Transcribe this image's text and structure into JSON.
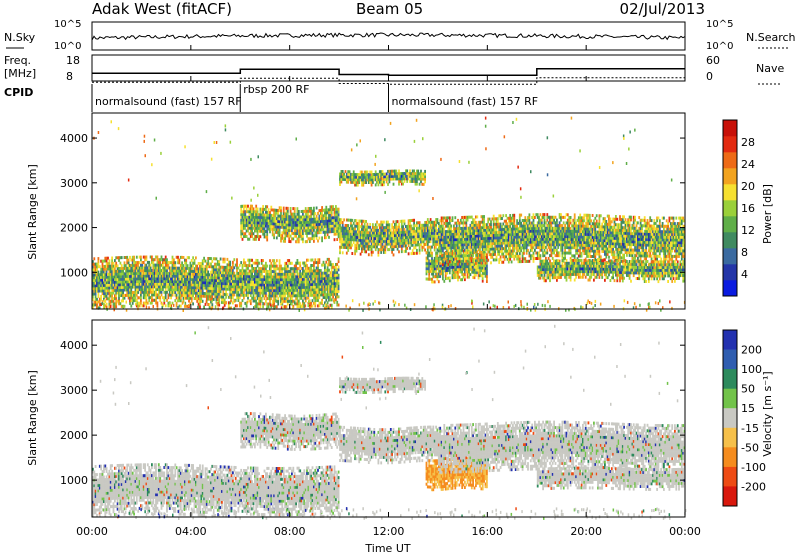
{
  "header": {
    "station": "Adak West (fitACF)",
    "beam": "Beam 05",
    "date": "02/Jul/2013"
  },
  "strip_labels": {
    "nsky": "N.Sky",
    "nsky_ticks": [
      "10^5",
      "10^0"
    ],
    "nsearch": "N.Search",
    "freq_line1": "Freq.",
    "freq_line2": "[MHz]",
    "freq_ticks": [
      "18",
      "8"
    ],
    "nave_ticks": [
      "60",
      "0"
    ],
    "nave": "Nave",
    "cpid": "CPID"
  },
  "cpid_segments": [
    {
      "label": "normalsound (fast) 157 RF",
      "start_hour": 0,
      "end_hour": 6
    },
    {
      "label": "rbsp 200 RF",
      "start_hour": 6,
      "end_hour": 12
    },
    {
      "label": "normalsound (fast) 157 RF",
      "start_hour": 12,
      "end_hour": 24
    }
  ],
  "axes": {
    "ylabel": "Slant Range [km]",
    "xlabel": "Time UT",
    "x_ticks": [
      "00:00",
      "04:00",
      "08:00",
      "12:00",
      "16:00",
      "20:00",
      "00:00"
    ],
    "y_ticks": [
      "1000",
      "2000",
      "3000",
      "4000"
    ]
  },
  "power_scale": {
    "label": "Power [dB]",
    "ticks": [
      "4",
      "8",
      "12",
      "16",
      "20",
      "24",
      "28"
    ]
  },
  "velocity_scale": {
    "label": "Velocity [m s⁻¹]",
    "ticks": [
      "200",
      "100",
      "50",
      "15",
      "-15",
      "-50",
      "-100",
      "-200"
    ]
  },
  "colors": {
    "power": [
      "#0a1be0",
      "#2436a8",
      "#3a6aa0",
      "#3f8a60",
      "#5fae48",
      "#9ad03a",
      "#f6e030",
      "#f2a31f",
      "#ee6a16",
      "#e32a10",
      "#c81008"
    ],
    "velocity": [
      "#2331b0",
      "#2f5db0",
      "#2c8a5c",
      "#72c34a",
      "#c9c9c3",
      "#f6c04a",
      "#f58c1e",
      "#ee4b14",
      "#d9180d"
    ]
  },
  "chart_data": {
    "type": "heatmap",
    "x_range_hours": [
      0,
      24
    ],
    "ylim_km": [
      180,
      4560
    ],
    "freq_mhz": [
      {
        "start_hour": 0,
        "end_hour": 6,
        "value": 10.7
      },
      {
        "start_hour": 6,
        "end_hour": 10,
        "value": 12.3
      },
      {
        "start_hour": 10,
        "end_hour": 12,
        "value": 10.2
      },
      {
        "start_hour": 12,
        "end_hour": 18,
        "value": 9.9
      },
      {
        "start_hour": 18,
        "end_hour": 24,
        "value": 12.5
      }
    ],
    "echo_bands": [
      {
        "start_hour": 0,
        "end_hour": 10,
        "range_km": [
          200,
          1350
        ],
        "power_db": "4-28",
        "velocity": "-15 to 15"
      },
      {
        "start_hour": 6,
        "end_hour": 10,
        "range_km": [
          1700,
          2500
        ],
        "power_db": "8-28",
        "velocity": "-15 to 15"
      },
      {
        "start_hour": 10,
        "end_hour": 14,
        "range_km": [
          1400,
          2200
        ],
        "power_db": "8-28",
        "velocity": "-15 to 15"
      },
      {
        "start_hour": 10,
        "end_hour": 13.5,
        "range_km": [
          2950,
          3300
        ],
        "power_db": "8-24",
        "velocity": "-15 to 15"
      },
      {
        "start_hour": 13.5,
        "end_hour": 16,
        "range_km": [
          800,
          1500
        ],
        "power_db": "4-20",
        "velocity": "-15 to -100"
      },
      {
        "start_hour": 14,
        "end_hour": 24,
        "range_km": [
          1200,
          2300
        ],
        "power_db": "4-20",
        "velocity": "-15 to 15"
      },
      {
        "start_hour": 18,
        "end_hour": 24,
        "range_km": [
          800,
          1300
        ],
        "power_db": "4-20",
        "velocity": "-15 to 15"
      }
    ]
  }
}
